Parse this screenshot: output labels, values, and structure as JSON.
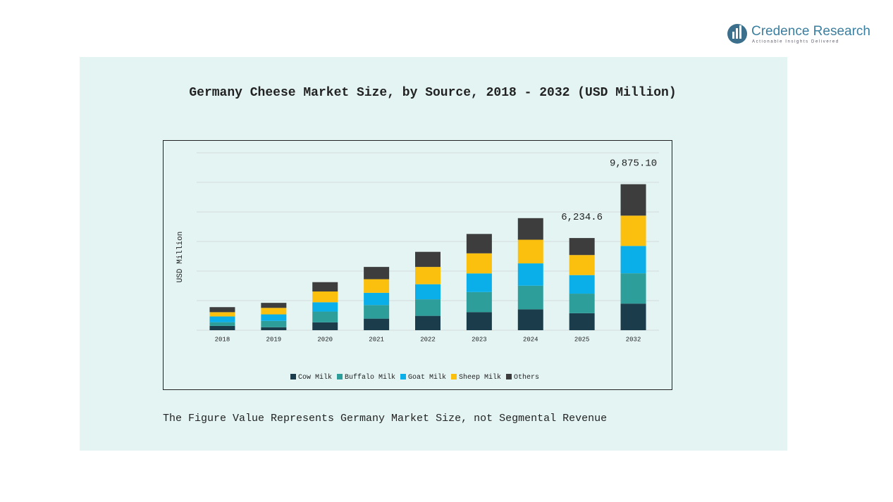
{
  "logo": {
    "name": "Credence Research",
    "tagline": "Actionable Insights Delivered"
  },
  "chart_data": {
    "type": "stacked_bar",
    "title": "Germany Cheese Market Size, by Source, 2018 - 2032 (USD Million)",
    "y_label": "USD Million",
    "categories": [
      "2018",
      "2019",
      "2020",
      "2021",
      "2022",
      "2023",
      "2024",
      "2025",
      "2032"
    ],
    "series": [
      {
        "name": "Cow Milk",
        "color": "#1b3d4b",
        "values": [
          290,
          200,
          530,
          780,
          970,
          1220,
          1410,
          1149,
          1800
        ]
      },
      {
        "name": "Buffalo Milk",
        "color": "#2e9e9a",
        "values": [
          250,
          430,
          730,
          920,
          1120,
          1360,
          1600,
          1324,
          2050
        ]
      },
      {
        "name": "Goat Milk",
        "color": "#0aaee8",
        "values": [
          390,
          440,
          630,
          830,
          1020,
          1260,
          1510,
          1254,
          1850
        ]
      },
      {
        "name": "Sheep Milk",
        "color": "#fbbf0e",
        "values": [
          290,
          440,
          730,
          920,
          1170,
          1360,
          1600,
          1358,
          2050
        ]
      },
      {
        "name": "Others",
        "color": "#3d3d3d",
        "values": [
          340,
          340,
          630,
          830,
          1020,
          1310,
          1460,
          1149.6,
          2125.1
        ]
      }
    ],
    "totals": [
      null,
      null,
      null,
      null,
      null,
      null,
      null,
      6234.6,
      9875.1
    ],
    "total_labels": [
      null,
      null,
      null,
      null,
      null,
      null,
      null,
      "6,234.6",
      "9,875.10"
    ],
    "ylim": [
      0,
      12000
    ],
    "yticks": [
      0,
      2000,
      4000,
      6000,
      8000,
      10000,
      12000
    ],
    "grid": true,
    "legend": "bottom",
    "footnote": "The Figure Value Represents Germany Market Size, not Segmental Revenue"
  }
}
